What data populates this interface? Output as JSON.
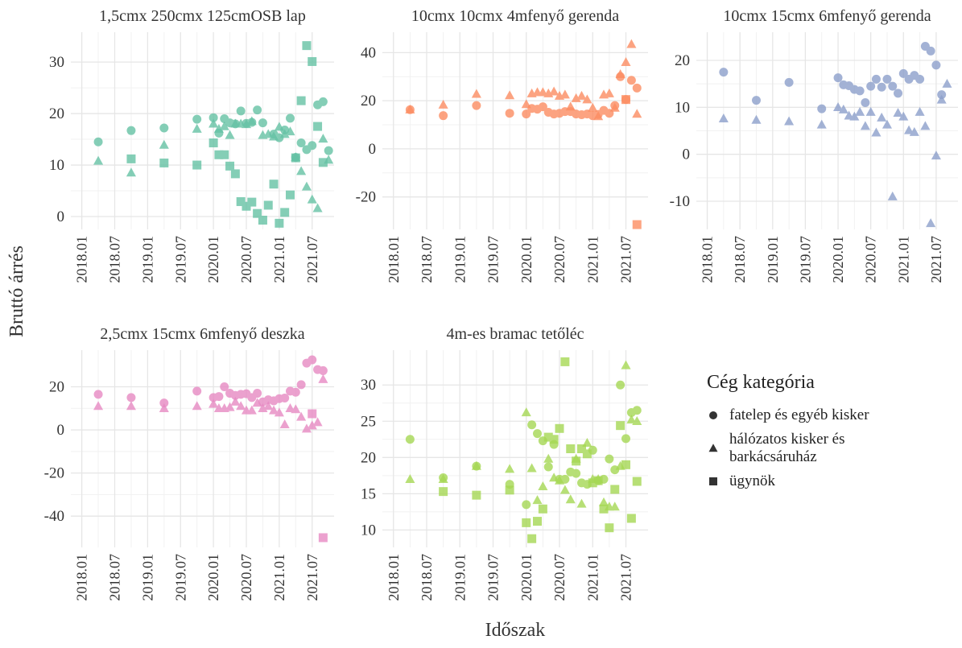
{
  "x_label": "Időszak",
  "y_label": "Bruttó árrés",
  "legend_title": "Cég kategória",
  "chart_data": [
    {
      "type": "scatter",
      "title": "1,5cmx 250cmx 125cmOSB lap",
      "color": "#66c2a5",
      "xlim": [
        "2017.11",
        "2021.11"
      ],
      "xticks": [
        "2018.01",
        "2018.07",
        "2019.01",
        "2019.07",
        "2020.01",
        "2020.07",
        "2021.01",
        "2021.07"
      ],
      "ylim": [
        -2.5,
        35.8
      ],
      "yticks": [
        0,
        10,
        20,
        30
      ],
      "grid": true,
      "series": [
        {
          "name": "fatelep és egyéb kisker",
          "shape": "circle",
          "x": [
            "2018.04",
            "2018.10",
            "2019.04",
            "2019.10",
            "2020.01",
            "2020.02",
            "2020.03",
            "2020.04",
            "2020.05",
            "2020.06",
            "2020.07",
            "2020.08",
            "2020.09",
            "2020.10",
            "2020.12",
            "2021.01",
            "2021.02",
            "2021.03",
            "2021.04",
            "2021.05",
            "2021.06",
            "2021.07",
            "2021.08",
            "2021.09",
            "2021.10"
          ],
          "values": [
            14.5,
            16.7,
            17.2,
            18.9,
            19.2,
            16.2,
            19,
            18.2,
            18,
            20.5,
            18.1,
            18.3,
            20.7,
            18.2,
            16,
            15.3,
            16.8,
            19.1,
            11.5,
            14.3,
            13,
            13.8,
            21.7,
            22.3,
            12.8
          ]
        },
        {
          "name": "hálózatos kisker és barkácsáruház",
          "shape": "triangle",
          "x": [
            "2018.04",
            "2018.10",
            "2019.04",
            "2019.10",
            "2020.01",
            "2020.02",
            "2020.03",
            "2020.04",
            "2020.05",
            "2020.06",
            "2020.07",
            "2020.08",
            "2020.10",
            "2020.11",
            "2020.12",
            "2021.01",
            "2021.02",
            "2021.03",
            "2021.04",
            "2021.05",
            "2021.06",
            "2021.07",
            "2021.08",
            "2021.09",
            "2021.10"
          ],
          "values": [
            10.8,
            8.5,
            13.9,
            17,
            18,
            17,
            17.5,
            15.8,
            18,
            18,
            17.9,
            18.5,
            15.8,
            16,
            15.5,
            17.4,
            16,
            16.5,
            11.5,
            8.8,
            5.8,
            3.3,
            1.6,
            15.1,
            11
          ]
        },
        {
          "name": "ügynök",
          "shape": "square",
          "x": [
            "2018.10",
            "2019.04",
            "2019.10",
            "2020.01",
            "2020.02",
            "2020.03",
            "2020.04",
            "2020.05",
            "2020.06",
            "2020.07",
            "2020.08",
            "2020.09",
            "2020.10",
            "2020.11",
            "2020.12",
            "2021.01",
            "2021.02",
            "2021.03",
            "2021.04",
            "2021.05",
            "2021.06",
            "2021.07",
            "2021.08",
            "2021.09"
          ],
          "values": [
            11.2,
            10.4,
            10,
            14.3,
            12,
            12,
            9.8,
            8.3,
            2.9,
            2,
            2.8,
            0.6,
            -0.7,
            2.2,
            6.3,
            -1.3,
            0.8,
            4.2,
            11.4,
            22.5,
            33.2,
            30.1,
            17.5,
            10.5
          ]
        }
      ]
    },
    {
      "type": "scatter",
      "title": "10cmx 10cmx 4mfenyő gerenda",
      "color": "#fc8d62",
      "xlim": [
        "2017.11",
        "2021.11"
      ],
      "xticks": [
        "2018.01",
        "2018.07",
        "2019.01",
        "2019.07",
        "2020.01",
        "2020.07",
        "2021.01",
        "2021.07"
      ],
      "ylim": [
        -33.5,
        48.5
      ],
      "yticks": [
        -20,
        0,
        20,
        40
      ],
      "grid": true,
      "series": [
        {
          "name": "fatelep és egyéb kisker",
          "shape": "circle",
          "x": [
            "2018.04",
            "2018.10",
            "2019.04",
            "2019.10",
            "2020.01",
            "2020.02",
            "2020.03",
            "2020.04",
            "2020.05",
            "2020.06",
            "2020.07",
            "2020.08",
            "2020.09",
            "2020.10",
            "2020.11",
            "2020.12",
            "2021.01",
            "2021.02",
            "2021.03",
            "2021.04",
            "2021.05",
            "2021.06",
            "2021.07",
            "2021.08",
            "2021.09"
          ],
          "values": [
            16.3,
            13.8,
            18,
            14.8,
            14.5,
            16.8,
            16.5,
            17.5,
            15.2,
            14.5,
            14.8,
            15.5,
            15.5,
            14.5,
            14.2,
            14.5,
            13.8,
            14.3,
            16,
            14.8,
            18,
            30,
            20.5,
            28.5,
            25.3
          ]
        },
        {
          "name": "hálózatos kisker és barkácsáruház",
          "shape": "triangle",
          "x": [
            "2018.04",
            "2018.10",
            "2019.04",
            "2019.10",
            "2020.01",
            "2020.02",
            "2020.03",
            "2020.04",
            "2020.05",
            "2020.06",
            "2020.07",
            "2020.08",
            "2020.09",
            "2020.10",
            "2020.11",
            "2020.12",
            "2021.01",
            "2021.02",
            "2021.03",
            "2021.04",
            "2021.05",
            "2021.06",
            "2021.07",
            "2021.08",
            "2021.09"
          ],
          "values": [
            16.3,
            18.3,
            22.8,
            22.2,
            18.5,
            23,
            23.5,
            23.5,
            23,
            23.8,
            22,
            22.5,
            17.5,
            21,
            22,
            20.5,
            17,
            13.5,
            22.5,
            23,
            17,
            31,
            36,
            43.5,
            14.5
          ]
        },
        {
          "name": "ügynök",
          "shape": "square",
          "x": [
            "2021.07",
            "2021.09"
          ],
          "values": [
            20.5,
            -31.5
          ]
        }
      ]
    },
    {
      "type": "scatter",
      "title": "10cmx 15cmx 6mfenyő gerenda",
      "color": "#8da0cb",
      "xlim": [
        "2017.11",
        "2021.11"
      ],
      "xticks": [
        "2018.01",
        "2018.07",
        "2019.01",
        "2019.07",
        "2020.01",
        "2020.07",
        "2021.01",
        "2021.07"
      ],
      "ylim": [
        -16,
        26
      ],
      "yticks": [
        -10,
        0,
        10,
        20
      ],
      "grid": true,
      "series": [
        {
          "name": "fatelep és egyéb kisker",
          "shape": "circle",
          "x": [
            "2018.04",
            "2018.10",
            "2019.04",
            "2019.10",
            "2020.01",
            "2020.02",
            "2020.03",
            "2020.04",
            "2020.05",
            "2020.06",
            "2020.07",
            "2020.08",
            "2020.09",
            "2020.10",
            "2020.11",
            "2020.12",
            "2021.01",
            "2021.02",
            "2021.03",
            "2021.04",
            "2021.05",
            "2021.06",
            "2021.07",
            "2021.08"
          ],
          "values": [
            17.5,
            11.5,
            15.3,
            9.7,
            16.3,
            14.8,
            14.6,
            13.8,
            13.5,
            11,
            14.5,
            16,
            14.3,
            16,
            14.5,
            13,
            17.2,
            16,
            16.8,
            16,
            23,
            22,
            19,
            12.7
          ]
        },
        {
          "name": "hálózatos kisker és barkácsáruház",
          "shape": "triangle",
          "x": [
            "2018.04",
            "2018.10",
            "2019.04",
            "2019.10",
            "2020.01",
            "2020.02",
            "2020.03",
            "2020.04",
            "2020.05",
            "2020.06",
            "2020.07",
            "2020.08",
            "2020.09",
            "2020.10",
            "2020.11",
            "2020.12",
            "2021.01",
            "2021.02",
            "2021.03",
            "2021.04",
            "2021.05",
            "2021.06",
            "2021.07",
            "2021.08",
            "2021.09"
          ],
          "values": [
            7.6,
            7.3,
            7,
            6.3,
            10,
            9.5,
            8.2,
            8,
            9,
            6,
            9,
            4.6,
            7.8,
            6.3,
            -9,
            8.8,
            8,
            5.1,
            4.7,
            9,
            6,
            -14.7,
            -0.3,
            11.6,
            15
          ]
        }
      ]
    },
    {
      "type": "scatter",
      "title": "2,5cmx 15cmx 6mfenyő deszka",
      "color": "#e78ac3",
      "xlim": [
        "2017.11",
        "2021.11"
      ],
      "xticks": [
        "2018.01",
        "2018.07",
        "2019.01",
        "2019.07",
        "2020.01",
        "2020.07",
        "2021.01",
        "2021.07"
      ],
      "ylim": [
        -54.5,
        37
      ],
      "yticks": [
        -40,
        -20,
        0,
        20
      ],
      "grid": true,
      "series": [
        {
          "name": "fatelep és egyéb kisker",
          "shape": "circle",
          "x": [
            "2018.04",
            "2018.10",
            "2019.04",
            "2019.10",
            "2020.01",
            "2020.02",
            "2020.03",
            "2020.04",
            "2020.05",
            "2020.06",
            "2020.07",
            "2020.08",
            "2020.09",
            "2020.10",
            "2020.11",
            "2020.12",
            "2021.01",
            "2021.02",
            "2021.03",
            "2021.04",
            "2021.05",
            "2021.06",
            "2021.07",
            "2021.08",
            "2021.09"
          ],
          "values": [
            16.5,
            15,
            12.5,
            18,
            15,
            15.5,
            20,
            17,
            16,
            16.5,
            16.8,
            15,
            17,
            13,
            14,
            13.5,
            14.5,
            14.8,
            18,
            17.5,
            21,
            31,
            32.5,
            28,
            27.5
          ]
        },
        {
          "name": "hálózatos kisker és barkácsáruház",
          "shape": "triangle",
          "x": [
            "2018.04",
            "2018.10",
            "2019.04",
            "2019.10",
            "2020.01",
            "2020.02",
            "2020.03",
            "2020.04",
            "2020.05",
            "2020.06",
            "2020.07",
            "2020.08",
            "2020.09",
            "2020.10",
            "2020.11",
            "2020.12",
            "2021.01",
            "2021.02",
            "2021.03",
            "2021.04",
            "2021.05",
            "2021.06",
            "2021.07",
            "2021.08",
            "2021.09"
          ],
          "values": [
            11,
            11,
            10,
            11,
            12,
            10,
            10,
            10.5,
            13,
            11,
            9,
            9,
            12.5,
            10,
            11,
            9,
            8,
            2.5,
            10,
            9.5,
            6,
            0.5,
            2,
            3.5,
            23.5
          ]
        },
        {
          "name": "ügynök",
          "shape": "square",
          "x": [
            "2021.07",
            "2021.09"
          ],
          "values": [
            7.5,
            -50
          ]
        }
      ]
    },
    {
      "type": "scatter",
      "title": "4m-es bramac tetőléc",
      "color": "#a6d854",
      "xlim": [
        "2017.11",
        "2021.11"
      ],
      "xticks": [
        "2018.01",
        "2018.07",
        "2019.01",
        "2019.07",
        "2020.01",
        "2020.07",
        "2021.01",
        "2021.07"
      ],
      "ylim": [
        7.6,
        34.8
      ],
      "yticks": [
        10,
        15,
        20,
        25,
        30
      ],
      "grid": true,
      "series": [
        {
          "name": "fatelep és egyéb kisker",
          "shape": "circle",
          "x": [
            "2018.04",
            "2018.10",
            "2019.04",
            "2019.10",
            "2020.01",
            "2020.02",
            "2020.03",
            "2020.04",
            "2020.05",
            "2020.06",
            "2020.07",
            "2020.08",
            "2020.09",
            "2020.10",
            "2020.11",
            "2020.12",
            "2021.01",
            "2021.02",
            "2021.03",
            "2021.04",
            "2021.05",
            "2021.06",
            "2021.07",
            "2021.08",
            "2021.09"
          ],
          "values": [
            22.5,
            17.2,
            18.8,
            16.3,
            13.5,
            24.5,
            23.3,
            22.3,
            18.7,
            21.8,
            17,
            17,
            18,
            17.8,
            16.5,
            16.3,
            21,
            16.8,
            17,
            19.8,
            18.3,
            30,
            22.6,
            26.2,
            26.5
          ]
        },
        {
          "name": "hálózatos kisker és barkácsáruház",
          "shape": "triangle",
          "x": [
            "2018.04",
            "2018.10",
            "2019.04",
            "2019.10",
            "2020.01",
            "2020.02",
            "2020.03",
            "2020.04",
            "2020.05",
            "2020.06",
            "2020.07",
            "2020.08",
            "2020.09",
            "2020.10",
            "2020.11",
            "2020.12",
            "2021.01",
            "2021.02",
            "2021.03",
            "2021.04",
            "2021.05",
            "2021.06",
            "2021.07",
            "2021.08",
            "2021.09"
          ],
          "values": [
            17,
            17,
            18.8,
            18.4,
            26.2,
            18.5,
            14.1,
            16,
            19.8,
            17.2,
            16.8,
            15.5,
            14.2,
            19.8,
            13.6,
            22,
            17,
            17,
            13.8,
            13.2,
            13.2,
            18.8,
            32.7,
            25.2,
            25
          ]
        },
        {
          "name": "ügynök",
          "shape": "square",
          "x": [
            "2018.10",
            "2019.04",
            "2019.10",
            "2020.01",
            "2020.02",
            "2020.03",
            "2020.04",
            "2020.05",
            "2020.06",
            "2020.07",
            "2020.08",
            "2020.09",
            "2020.10",
            "2020.11",
            "2020.12",
            "2021.01",
            "2021.02",
            "2021.03",
            "2021.04",
            "2021.05",
            "2021.06",
            "2021.07",
            "2021.08",
            "2021.09"
          ],
          "values": [
            15.3,
            14.8,
            15.5,
            11,
            8.8,
            11.2,
            12.9,
            22.8,
            22.5,
            24,
            33.2,
            21.2,
            19.5,
            21.2,
            20.5,
            16.5,
            16.8,
            12.9,
            10.3,
            15.6,
            24.4,
            19,
            11.6,
            16.7
          ]
        }
      ]
    }
  ]
}
